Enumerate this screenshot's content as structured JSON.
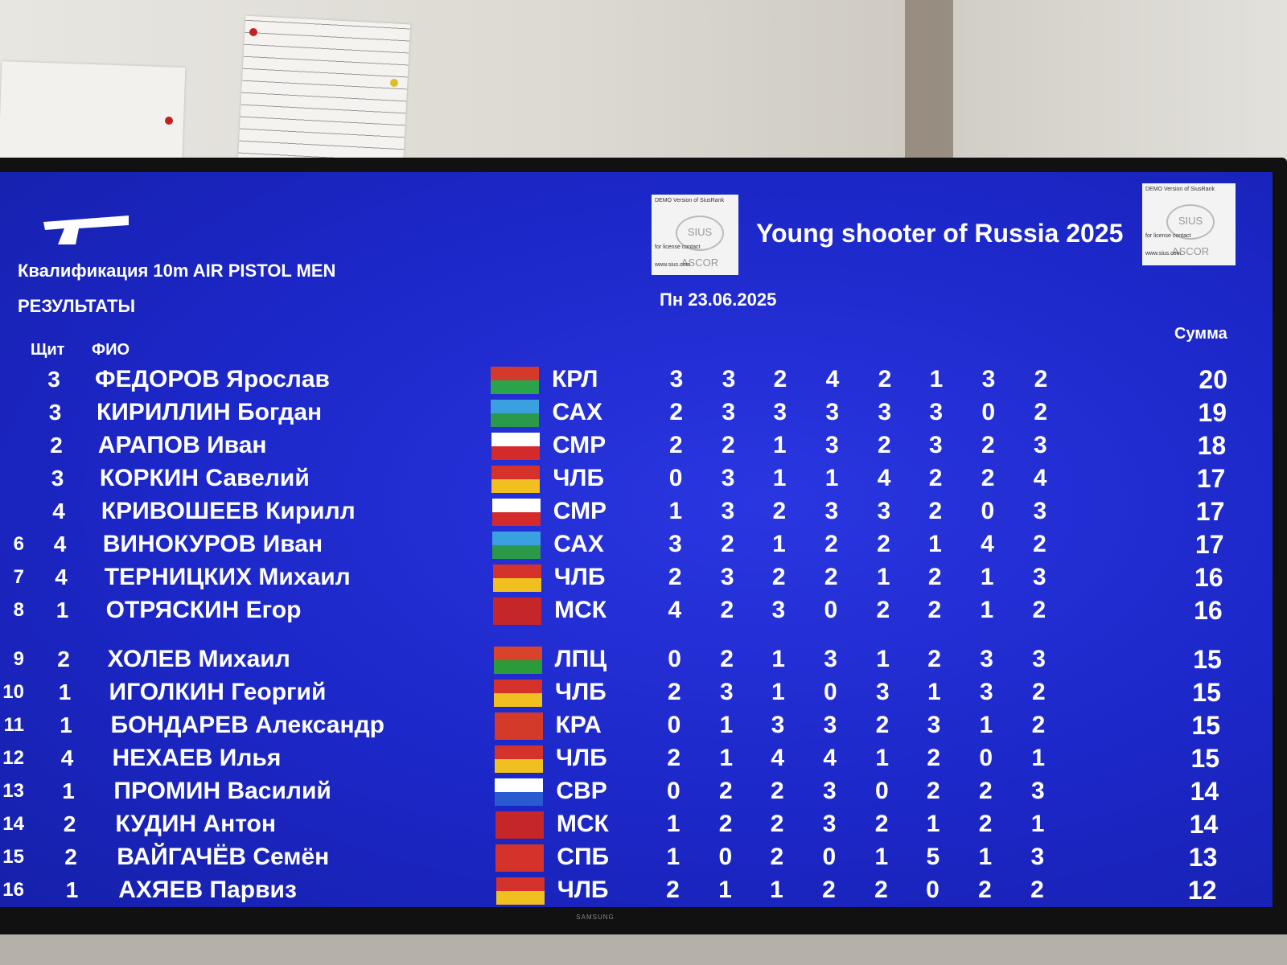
{
  "event": "Квалификация 10m AIR PISTOL MEN",
  "results_label": "РЕЗУЛЬТАТЫ",
  "title": "Young shooter of Russia 2025",
  "date": "Пн 23.06.2025",
  "brand": "SAMSUNG",
  "logo": {
    "top": "DEMO Version of SiusRank",
    "mark": "SIUS ASCOR",
    "mid": "for license contact",
    "bot": "www.sius.com"
  },
  "headers": {
    "shield": "Щит",
    "name": "ФИО",
    "sum": "Сумма"
  },
  "colors": {
    "screen": "#1c27c8",
    "text": "#ffffff"
  },
  "rows": [
    {
      "rank": "",
      "shield": "3",
      "name": "ФЕДОРОВ Ярослав",
      "region": "КРЛ",
      "flag": [
        "#d43a2a",
        "#2aa44a"
      ],
      "scores": [
        "3",
        "3",
        "2",
        "4",
        "2",
        "1",
        "3",
        "2"
      ],
      "sum": "20"
    },
    {
      "rank": "",
      "shield": "3",
      "name": "КИРИЛЛИН Богдан",
      "region": "САХ",
      "flag": [
        "#3aa0e0",
        "#2a9a4a"
      ],
      "scores": [
        "2",
        "3",
        "3",
        "3",
        "3",
        "3",
        "0",
        "2"
      ],
      "sum": "19"
    },
    {
      "rank": "",
      "shield": "2",
      "name": "АРАПОВ Иван",
      "region": "СМР",
      "flag": [
        "#ffffff",
        "#d42a2a"
      ],
      "scores": [
        "2",
        "2",
        "1",
        "3",
        "2",
        "3",
        "2",
        "3"
      ],
      "sum": "18"
    },
    {
      "rank": "",
      "shield": "3",
      "name": "КОРКИН Савелий",
      "region": "ЧЛБ",
      "flag": [
        "#d4322a",
        "#f0c020"
      ],
      "scores": [
        "0",
        "3",
        "1",
        "1",
        "4",
        "2",
        "2",
        "4"
      ],
      "sum": "17"
    },
    {
      "rank": "",
      "shield": "4",
      "name": "КРИВОШЕЕВ Кирилл",
      "region": "СМР",
      "flag": [
        "#ffffff",
        "#d42a2a"
      ],
      "scores": [
        "1",
        "3",
        "2",
        "3",
        "3",
        "2",
        "0",
        "3"
      ],
      "sum": "17"
    },
    {
      "rank": "6",
      "shield": "4",
      "name": "ВИНОКУРОВ Иван",
      "region": "САХ",
      "flag": [
        "#3aa0e0",
        "#2a9a4a"
      ],
      "scores": [
        "3",
        "2",
        "1",
        "2",
        "2",
        "1",
        "4",
        "2"
      ],
      "sum": "17"
    },
    {
      "rank": "7",
      "shield": "4",
      "name": "ТЕРНИЦКИХ Михаил",
      "region": "ЧЛБ",
      "flag": [
        "#d4322a",
        "#f0c020"
      ],
      "scores": [
        "2",
        "3",
        "2",
        "2",
        "1",
        "2",
        "1",
        "3"
      ],
      "sum": "16"
    },
    {
      "rank": "8",
      "shield": "1",
      "name": "ОТРЯСКИН Егор",
      "region": "МСК",
      "flag": [
        "#c4262a",
        "#c4262a"
      ],
      "scores": [
        "4",
        "2",
        "3",
        "0",
        "2",
        "2",
        "1",
        "2"
      ],
      "sum": "16"
    },
    {
      "rank": "9",
      "shield": "2",
      "name": "ХОЛЕВ Михаил",
      "region": "ЛПЦ",
      "flag": [
        "#d8442a",
        "#2a9a3a"
      ],
      "scores": [
        "0",
        "2",
        "1",
        "3",
        "1",
        "2",
        "3",
        "3"
      ],
      "sum": "15"
    },
    {
      "rank": "10",
      "shield": "1",
      "name": "ИГОЛКИН Георгий",
      "region": "ЧЛБ",
      "flag": [
        "#d4322a",
        "#f0c020"
      ],
      "scores": [
        "2",
        "3",
        "1",
        "0",
        "3",
        "1",
        "3",
        "2"
      ],
      "sum": "15"
    },
    {
      "rank": "11",
      "shield": "1",
      "name": "БОНДАРЕВ Александр",
      "region": "КРА",
      "flag": [
        "#d43a2a",
        "#d43a2a"
      ],
      "scores": [
        "0",
        "1",
        "3",
        "3",
        "2",
        "3",
        "1",
        "2"
      ],
      "sum": "15"
    },
    {
      "rank": "12",
      "shield": "4",
      "name": "НЕХАЕВ Илья",
      "region": "ЧЛБ",
      "flag": [
        "#d4322a",
        "#f0c020"
      ],
      "scores": [
        "2",
        "1",
        "4",
        "4",
        "1",
        "2",
        "0",
        "1"
      ],
      "sum": "15"
    },
    {
      "rank": "13",
      "shield": "1",
      "name": "ПРОМИН Василий",
      "region": "СВР",
      "flag": [
        "#ffffff",
        "#2a5ad0"
      ],
      "scores": [
        "0",
        "2",
        "2",
        "3",
        "0",
        "2",
        "2",
        "3"
      ],
      "sum": "14"
    },
    {
      "rank": "14",
      "shield": "2",
      "name": "КУДИН Антон",
      "region": "МСК",
      "flag": [
        "#c4262a",
        "#c4262a"
      ],
      "scores": [
        "1",
        "2",
        "2",
        "3",
        "2",
        "1",
        "2",
        "1"
      ],
      "sum": "14"
    },
    {
      "rank": "15",
      "shield": "2",
      "name": "ВАЙГАЧЁВ Семён",
      "region": "СПБ",
      "flag": [
        "#d4322a",
        "#d4322a"
      ],
      "scores": [
        "1",
        "0",
        "2",
        "0",
        "1",
        "5",
        "1",
        "3"
      ],
      "sum": "13"
    },
    {
      "rank": "16",
      "shield": "1",
      "name": "АХЯЕВ Парвиз",
      "region": "ЧЛБ",
      "flag": [
        "#d4322a",
        "#f0c020"
      ],
      "scores": [
        "2",
        "1",
        "1",
        "2",
        "2",
        "0",
        "2",
        "2"
      ],
      "sum": "12"
    }
  ]
}
